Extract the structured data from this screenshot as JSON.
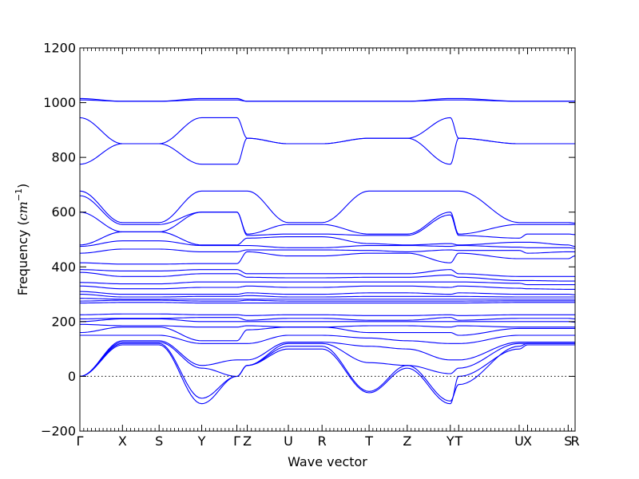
{
  "chart_data": {
    "type": "line",
    "title": "",
    "xlabel": "Wave vector",
    "ylabel": "Frequency",
    "ylabel_unit": "cm",
    "ylabel_exponent": "−1",
    "ylim": [
      -200,
      1200
    ],
    "yticks": [
      -200,
      0,
      200,
      400,
      600,
      800,
      1000,
      1200
    ],
    "grid": false,
    "legend": "none",
    "line_color": "#0000ff",
    "zero_line_color": "#000000",
    "x_segment_bounds": [
      0.0,
      0.86,
      1.6,
      2.46,
      3.17,
      3.38,
      4.21,
      4.89,
      5.84,
      6.61,
      7.48,
      7.65,
      8.87,
      9.04,
      9.86,
      10.0
    ],
    "high_symmetry_points": [
      {
        "label": "Γ",
        "x": 0.0
      },
      {
        "label": "X",
        "x": 0.86
      },
      {
        "label": "S",
        "x": 1.6
      },
      {
        "label": "Y",
        "x": 2.46
      },
      {
        "label": "Γ",
        "x": 3.17
      },
      {
        "label": "Z",
        "x": 3.38
      },
      {
        "label": "U",
        "x": 4.21
      },
      {
        "label": "R",
        "x": 4.89
      },
      {
        "label": "T",
        "x": 5.84
      },
      {
        "label": "Z",
        "x": 6.61
      },
      {
        "label": "Y",
        "x": 7.48
      },
      {
        "label": "T",
        "x": 7.65
      },
      {
        "label": "U",
        "x": 8.87
      },
      {
        "label": "X",
        "x": 9.04
      },
      {
        "label": "S",
        "x": 9.86
      },
      {
        "label": "R",
        "x": 10.0
      }
    ],
    "series": [
      {
        "values": [
          1015,
          1005,
          1005,
          1015,
          1015,
          1005,
          1005,
          1005,
          1005,
          1005,
          1015,
          1015,
          1005,
          1005,
          1005,
          1005
        ]
      },
      {
        "values": [
          1010,
          1005,
          1005,
          1010,
          1010,
          1005,
          1005,
          1005,
          1005,
          1005,
          1010,
          1010,
          1005,
          1005,
          1005,
          1005
        ]
      },
      {
        "values": [
          945,
          850,
          850,
          945,
          945,
          870,
          850,
          850,
          870,
          870,
          945,
          870,
          850,
          850,
          850,
          850
        ]
      },
      {
        "values": [
          775,
          850,
          850,
          775,
          775,
          870,
          850,
          850,
          870,
          870,
          775,
          870,
          850,
          850,
          850,
          850
        ]
      },
      {
        "values": [
          677,
          562,
          562,
          677,
          677,
          677,
          562,
          562,
          677,
          677,
          677,
          677,
          562,
          562,
          562,
          560
        ]
      },
      {
        "values": [
          660,
          555,
          555,
          600,
          600,
          520,
          555,
          555,
          520,
          520,
          600,
          520,
          555,
          555,
          555,
          555
        ]
      },
      {
        "values": [
          600,
          528,
          528,
          600,
          600,
          515,
          520,
          520,
          515,
          515,
          590,
          515,
          505,
          520,
          520,
          518
        ]
      },
      {
        "values": [
          480,
          528,
          528,
          480,
          480,
          505,
          510,
          510,
          485,
          480,
          485,
          480,
          490,
          490,
          480,
          475
        ]
      },
      {
        "values": [
          475,
          495,
          495,
          478,
          478,
          478,
          470,
          470,
          478,
          478,
          475,
          478,
          472,
          470,
          470,
          468
        ]
      },
      {
        "values": [
          450,
          465,
          465,
          455,
          455,
          462,
          462,
          462,
          460,
          455,
          462,
          460,
          460,
          450,
          455,
          455
        ]
      },
      {
        "values": [
          415,
          410,
          410,
          412,
          412,
          455,
          440,
          440,
          450,
          450,
          415,
          450,
          430,
          430,
          430,
          440
        ]
      },
      {
        "values": [
          390,
          385,
          385,
          390,
          390,
          375,
          375,
          375,
          375,
          375,
          390,
          375,
          365,
          365,
          365,
          365
        ]
      },
      {
        "values": [
          380,
          365,
          365,
          375,
          375,
          362,
          360,
          360,
          362,
          362,
          370,
          362,
          350,
          350,
          348,
          348
        ]
      },
      {
        "values": [
          343,
          338,
          338,
          345,
          345,
          345,
          345,
          345,
          345,
          345,
          345,
          345,
          340,
          335,
          335,
          335
        ]
      },
      {
        "values": [
          330,
          320,
          320,
          325,
          325,
          330,
          325,
          325,
          330,
          330,
          325,
          330,
          322,
          320,
          318,
          318
        ]
      },
      {
        "values": [
          310,
          300,
          300,
          300,
          300,
          305,
          300,
          300,
          305,
          305,
          300,
          305,
          300,
          300,
          300,
          298
        ]
      },
      {
        "values": [
          300,
          290,
          290,
          292,
          292,
          295,
          290,
          290,
          292,
          292,
          292,
          292,
          290,
          290,
          290,
          290
        ]
      },
      {
        "values": [
          285,
          282,
          282,
          282,
          282,
          282,
          282,
          282,
          282,
          282,
          282,
          282,
          282,
          282,
          282,
          282
        ]
      },
      {
        "values": [
          275,
          278,
          278,
          275,
          275,
          278,
          275,
          275,
          275,
          275,
          275,
          275,
          276,
          276,
          276,
          276
        ]
      },
      {
        "values": [
          268,
          270,
          270,
          268,
          268,
          268,
          268,
          268,
          268,
          268,
          268,
          268,
          270,
          270,
          270,
          270
        ]
      },
      {
        "values": [
          225,
          228,
          228,
          225,
          225,
          222,
          225,
          225,
          222,
          222,
          225,
          222,
          225,
          225,
          225,
          225
        ]
      },
      {
        "values": [
          210,
          212,
          212,
          215,
          215,
          205,
          212,
          212,
          205,
          205,
          215,
          205,
          212,
          212,
          212,
          210
        ]
      },
      {
        "values": [
          200,
          210,
          210,
          200,
          200,
          200,
          200,
          200,
          200,
          200,
          200,
          200,
          200,
          200,
          200,
          198
        ]
      },
      {
        "values": [
          190,
          185,
          185,
          180,
          180,
          185,
          180,
          180,
          185,
          185,
          180,
          185,
          180,
          180,
          180,
          180
        ]
      },
      {
        "values": [
          160,
          180,
          180,
          130,
          130,
          170,
          180,
          180,
          160,
          160,
          160,
          150,
          175,
          175,
          175,
          175
        ]
      },
      {
        "values": [
          150,
          150,
          150,
          120,
          120,
          120,
          150,
          150,
          140,
          130,
          120,
          120,
          150,
          150,
          150,
          150
        ]
      },
      {
        "values": [
          0,
          130,
          130,
          40,
          60,
          60,
          125,
          125,
          110,
          100,
          60,
          60,
          125,
          125,
          125,
          125
        ]
      },
      {
        "values": [
          0,
          125,
          125,
          30,
          0,
          40,
          120,
          120,
          50,
          40,
          10,
          30,
          120,
          120,
          120,
          120
        ]
      },
      {
        "values": [
          0,
          120,
          120,
          -80,
          0,
          40,
          110,
          110,
          -55,
          40,
          -90,
          -30,
          110,
          120,
          120,
          120
        ]
      },
      {
        "values": [
          0,
          115,
          115,
          -100,
          0,
          40,
          100,
          100,
          -60,
          30,
          -100,
          0,
          100,
          115,
          115,
          115
        ]
      }
    ]
  }
}
